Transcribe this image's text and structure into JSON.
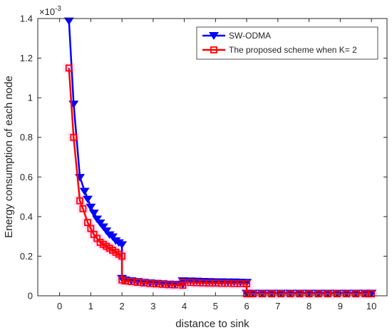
{
  "chart_data": {
    "type": "line",
    "xlabel": "distance to sink",
    "ylabel": "Energy consumption of each node",
    "y_exponent_label": "×10",
    "y_exponent_power": "-3",
    "xlim": [
      -0.7,
      10.5
    ],
    "ylim": [
      0,
      1.4
    ],
    "xticks": [
      "0",
      "1",
      "2",
      "3",
      "4",
      "5",
      "6",
      "7",
      "8",
      "9",
      "10"
    ],
    "yticks": [
      "0",
      "0.2",
      "0.4",
      "0.6",
      "0.8",
      "1",
      "1.2",
      "1.4"
    ],
    "legend_position": "top-right",
    "grid": false,
    "series": [
      {
        "name": "SW-ODMA",
        "color": "#0000ff",
        "marker": "triangle-down",
        "x": [
          0.3,
          0.45,
          0.65,
          0.8,
          0.9,
          1.0,
          1.1,
          1.2,
          1.3,
          1.4,
          1.5,
          1.6,
          1.7,
          1.8,
          1.9,
          2.0,
          2.0,
          2.1,
          2.3,
          2.5,
          2.7,
          2.9,
          3.1,
          3.3,
          3.5,
          3.7,
          3.95,
          3.95,
          4.2,
          4.4,
          4.6,
          4.8,
          5.0,
          5.2,
          5.4,
          5.6,
          5.8,
          6.0,
          6.0,
          6.2,
          6.5,
          6.8,
          7.1,
          7.4,
          7.7,
          8.0,
          8.3,
          8.6,
          8.9,
          9.2,
          9.5,
          9.8,
          10.0
        ],
        "y": [
          1.39,
          0.97,
          0.6,
          0.53,
          0.49,
          0.45,
          0.42,
          0.39,
          0.37,
          0.35,
          0.33,
          0.31,
          0.3,
          0.28,
          0.27,
          0.26,
          0.09,
          0.082,
          0.078,
          0.074,
          0.07,
          0.067,
          0.065,
          0.063,
          0.061,
          0.06,
          0.059,
          0.078,
          0.077,
          0.076,
          0.075,
          0.074,
          0.073,
          0.073,
          0.072,
          0.072,
          0.071,
          0.07,
          0.015,
          0.015,
          0.015,
          0.015,
          0.015,
          0.015,
          0.015,
          0.015,
          0.015,
          0.015,
          0.015,
          0.015,
          0.015,
          0.015,
          0.015
        ]
      },
      {
        "name": "The proposed scheme when K= 2",
        "color": "#ff0000",
        "marker": "square",
        "x": [
          0.3,
          0.45,
          0.65,
          0.75,
          0.9,
          1.0,
          1.1,
          1.2,
          1.3,
          1.4,
          1.5,
          1.6,
          1.7,
          1.8,
          1.9,
          2.0,
          2.0,
          2.1,
          2.3,
          2.5,
          2.7,
          2.9,
          3.1,
          3.3,
          3.5,
          3.7,
          3.95,
          3.95,
          4.2,
          4.4,
          4.6,
          4.8,
          5.0,
          5.2,
          5.4,
          5.6,
          5.8,
          6.0,
          6.0,
          6.2,
          6.5,
          6.8,
          7.1,
          7.4,
          7.7,
          8.0,
          8.3,
          8.6,
          8.9,
          9.2,
          9.5,
          9.8,
          10.0
        ],
        "y": [
          1.15,
          0.8,
          0.48,
          0.44,
          0.37,
          0.34,
          0.31,
          0.29,
          0.27,
          0.26,
          0.25,
          0.24,
          0.23,
          0.22,
          0.21,
          0.2,
          0.08,
          0.075,
          0.072,
          0.068,
          0.065,
          0.062,
          0.06,
          0.058,
          0.056,
          0.055,
          0.053,
          0.068,
          0.067,
          0.066,
          0.065,
          0.064,
          0.064,
          0.063,
          0.063,
          0.062,
          0.062,
          0.061,
          0.01,
          0.01,
          0.01,
          0.01,
          0.01,
          0.01,
          0.01,
          0.01,
          0.01,
          0.01,
          0.01,
          0.01,
          0.01,
          0.01,
          0.01
        ]
      }
    ]
  }
}
